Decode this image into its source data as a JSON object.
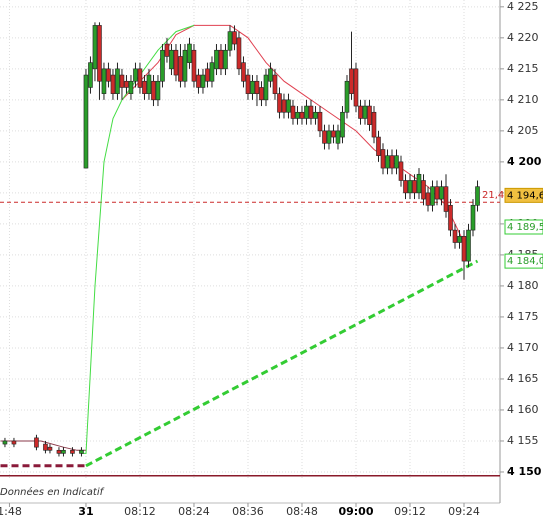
{
  "chart_data": {
    "type": "candlestick",
    "xlim": [
      -19.1,
      92
    ],
    "ylim": [
      4149.03,
      4226.1
    ],
    "grid": true,
    "up_color": "#2a9d2a",
    "down_color": "#cc2a2a",
    "footer_text": "Données en Indicatif",
    "yticks": [
      {
        "value": 4150,
        "label": "4 150",
        "bold": true
      },
      {
        "value": 4155,
        "label": "4 155"
      },
      {
        "value": 4160,
        "label": "4 160"
      },
      {
        "value": 4165,
        "label": "4 165"
      },
      {
        "value": 4170,
        "label": "4 170"
      },
      {
        "value": 4175,
        "label": "4 175"
      },
      {
        "value": 4180,
        "label": "4 180"
      },
      {
        "value": 4185,
        "label": "4 185"
      },
      {
        "value": 4190,
        "label": "4 190"
      },
      {
        "value": 4195,
        "label": "4 195"
      },
      {
        "value": 4200,
        "label": "4 200",
        "bold": true
      },
      {
        "value": 4205,
        "label": "4 205"
      },
      {
        "value": 4210,
        "label": "4 210"
      },
      {
        "value": 4215,
        "label": "4 215"
      },
      {
        "value": 4220,
        "label": "4 220"
      },
      {
        "value": 4225,
        "label": "4 225"
      }
    ],
    "xticks": [
      {
        "value": -17,
        "label": "1:48"
      },
      {
        "value": 0,
        "label": "31",
        "bold": true
      },
      {
        "value": 12,
        "label": "08:12"
      },
      {
        "value": 24,
        "label": "08:24"
      },
      {
        "value": 36,
        "label": "08:36"
      },
      {
        "value": 48,
        "label": "08:48"
      },
      {
        "value": 60,
        "label": "09:00",
        "bold": true
      },
      {
        "value": 72,
        "label": "09:12"
      },
      {
        "value": 84,
        "label": "09:24"
      }
    ],
    "candles": {
      "x": [
        -18,
        -16,
        -11,
        -9,
        -8,
        -6,
        -5,
        -3,
        -1,
        0,
        1,
        2,
        3,
        4,
        5,
        6,
        7,
        8,
        9,
        10,
        11,
        12,
        13,
        14,
        15,
        16,
        17,
        18,
        19,
        20,
        21,
        22,
        23,
        24,
        25,
        26,
        27,
        28,
        29,
        30,
        31,
        32,
        33,
        34,
        35,
        36,
        37,
        38,
        39,
        40,
        41,
        42,
        43,
        44,
        45,
        46,
        47,
        48,
        49,
        50,
        51,
        52,
        53,
        54,
        55,
        56,
        57,
        58,
        59,
        60,
        61,
        62,
        63,
        64,
        65,
        66,
        67,
        68,
        69,
        70,
        71,
        72,
        73,
        74,
        75,
        76,
        77,
        78,
        79,
        80,
        81,
        82,
        83,
        84,
        85,
        86,
        87
      ],
      "open": [
        4154.5,
        4155,
        4155.5,
        4154.5,
        4154,
        4153.5,
        4153,
        4153.5,
        4153,
        4199,
        4212,
        4215,
        4222,
        4211,
        4215,
        4214,
        4211,
        4214,
        4213,
        4211,
        4213,
        4215,
        4213,
        4211,
        4213,
        4210,
        4213,
        4219,
        4215,
        4218,
        4217,
        4213,
        4216,
        4218,
        4214,
        4212,
        4215,
        4213,
        4215,
        4218,
        4215,
        4218,
        4221,
        4220,
        4216,
        4214,
        4211,
        4213,
        4212,
        4210,
        4213,
        4214,
        4211,
        4210,
        4208,
        4209,
        4207,
        4208,
        4207,
        4209,
        4207,
        4208,
        4205,
        4203,
        4205,
        4203,
        4204,
        4208,
        4215,
        4215,
        4209,
        4207,
        4209,
        4208,
        4204,
        4202,
        4199,
        4201,
        4199,
        4200,
        4197,
        4195,
        4197,
        4195,
        4197,
        4195,
        4193,
        4196,
        4194,
        4196,
        4193,
        4189,
        4187,
        4188,
        4184,
        4189,
        4193
      ],
      "high": [
        4155.5,
        4155.5,
        4156,
        4155,
        4154.5,
        4154,
        4154,
        4154,
        4154,
        4215,
        4217,
        4222.5,
        4222.5,
        4216,
        4216,
        4215,
        4216,
        4215,
        4214,
        4214,
        4216,
        4216,
        4214,
        4215,
        4214,
        4214,
        4219,
        4220,
        4219,
        4219,
        4219,
        4219,
        4220,
        4219,
        4215,
        4215,
        4216,
        4217,
        4219,
        4219,
        4219,
        4222,
        4222,
        4221,
        4217,
        4215,
        4214,
        4214,
        4213,
        4215,
        4216,
        4215,
        4212,
        4211,
        4211,
        4210,
        4209,
        4209,
        4210,
        4210,
        4209,
        4209,
        4206,
        4206,
        4206,
        4206,
        4209,
        4214,
        4221,
        4216,
        4210,
        4210,
        4210,
        4209,
        4205,
        4203,
        4202,
        4202,
        4202,
        4201,
        4198,
        4198,
        4198,
        4199,
        4198,
        4196,
        4197,
        4197,
        4197,
        4198,
        4194,
        4190,
        4189,
        4189,
        4190,
        4194,
        4197
      ],
      "low": [
        4154,
        4154,
        4153.5,
        4153,
        4153,
        4152.5,
        4152.5,
        4152.5,
        4152.5,
        4199,
        4211,
        4213,
        4210,
        4210,
        4212,
        4210,
        4210,
        4210,
        4211,
        4210,
        4212,
        4211,
        4210,
        4210,
        4209,
        4209,
        4212,
        4216,
        4214,
        4213,
        4212,
        4212,
        4215,
        4212,
        4211,
        4211,
        4212,
        4212,
        4214,
        4214,
        4214,
        4217,
        4218,
        4214,
        4212,
        4210,
        4210,
        4209,
        4209,
        4209,
        4212,
        4210,
        4207,
        4207,
        4207,
        4206,
        4206,
        4206,
        4206,
        4206,
        4206,
        4204,
        4202,
        4202,
        4203,
        4202,
        4203,
        4207,
        4210,
        4208,
        4206,
        4206,
        4205,
        4203,
        4200,
        4198,
        4198,
        4198,
        4198,
        4196,
        4194,
        4194,
        4194,
        4194,
        4193,
        4192,
        4192,
        4193,
        4193,
        4191,
        4188,
        4186,
        4186,
        4181,
        4183,
        4188,
        4192
      ],
      "close": [
        4155,
        4154.5,
        4154,
        4153.5,
        4153.5,
        4153,
        4153.5,
        4153,
        4153.5,
        4214,
        4216,
        4222,
        4213,
        4215,
        4213,
        4211,
        4215,
        4212,
        4212,
        4213,
        4215,
        4212,
        4211,
        4214,
        4210,
        4213,
        4218,
        4217,
        4218,
        4214,
        4213,
        4218,
        4219,
        4213,
        4212,
        4214,
        4213,
        4216,
        4218,
        4215,
        4218,
        4221,
        4219,
        4215,
        4213,
        4211,
        4213,
        4211,
        4210,
        4214,
        4215,
        4211,
        4208,
        4208,
        4210,
        4207,
        4208,
        4207,
        4209,
        4207,
        4208,
        4205,
        4203,
        4205,
        4204,
        4205,
        4208,
        4213,
        4211,
        4209,
        4207,
        4209,
        4206,
        4204,
        4201,
        4199,
        4201,
        4199,
        4201,
        4197,
        4195,
        4197,
        4195,
        4198,
        4194,
        4193,
        4196,
        4194,
        4196,
        4192,
        4189,
        4187,
        4188,
        4184,
        4189,
        4193,
        4196
      ]
    },
    "lines": [
      {
        "color": "#8a3a4a",
        "dash": false,
        "x": [
          -19,
          -10,
          -5,
          -2,
          0
        ],
        "values": [
          4155,
          4155,
          4154,
          4153.5,
          4153.5
        ]
      },
      {
        "color": "#e04050",
        "dash": false,
        "x": [
          8,
          12,
          16,
          20,
          24,
          28,
          32,
          36,
          40,
          44,
          48,
          52,
          56,
          60,
          64,
          68,
          72,
          76,
          80,
          84
        ],
        "values": [
          4210,
          4213,
          4216,
          4220.5,
          4222,
          4222,
          4222,
          4220,
          4216,
          4213,
          4211,
          4209,
          4207,
          4205,
          4202,
          4200,
          4198,
          4196,
          4193,
          4187
        ]
      },
      {
        "color": "#44dd44",
        "dash": false,
        "x": [
          -1,
          0,
          2,
          4,
          6,
          8,
          12,
          16,
          20,
          24
        ],
        "values": [
          4153,
          4153,
          4180,
          4200,
          4207,
          4210,
          4214,
          4218,
          4221,
          4222
        ]
      },
      {
        "color": "#33cc33",
        "dash": true,
        "x": [
          0,
          87
        ],
        "values": [
          4151,
          4184
        ]
      },
      {
        "color": "#8a1a3a",
        "dash": true,
        "x": [
          -19,
          0
        ],
        "values": [
          4151,
          4151
        ]
      }
    ],
    "hlines": [
      {
        "value": 4193.5,
        "color": "#cc2a2a",
        "dash": true,
        "label": "21,4"
      },
      {
        "value": 4149.4,
        "color": "#8a1a2a",
        "dash": false
      }
    ],
    "price_tags": [
      {
        "value": 4194.6,
        "label": "4 194,6",
        "color": "#f0c040"
      },
      {
        "value": 4189.5,
        "label": "4 189,5",
        "color": "#ffffff"
      },
      {
        "value": 4184,
        "label": "4 184,0",
        "color": "#ffffff"
      }
    ]
  }
}
